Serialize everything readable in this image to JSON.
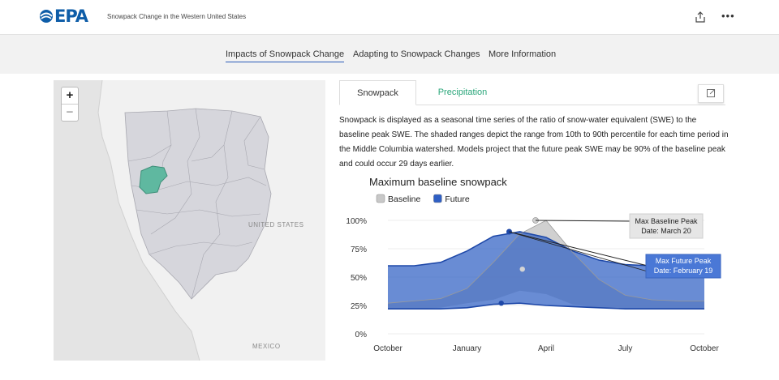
{
  "header": {
    "logo_text": "EPA",
    "app_title": "Snowpack Change in the Western United States"
  },
  "nav": {
    "items": [
      {
        "label": "Impacts of Snowpack Change",
        "active": true
      },
      {
        "label": "Adapting to Snowpack Changes",
        "active": false
      },
      {
        "label": "More Information",
        "active": false
      }
    ]
  },
  "map": {
    "zoom_in": "+",
    "zoom_out": "−",
    "labels": {
      "united_states": "UNITED STATES",
      "mexico": "MEXICO"
    },
    "highlight_color": "#5fb8a0",
    "region_color": "#d6d6dc"
  },
  "panel": {
    "tabs": [
      {
        "label": "Snowpack",
        "active": true
      },
      {
        "label": "Precipitation",
        "active": false
      }
    ],
    "description": "Snowpack is displayed as a seasonal time series of the ratio of snow-water equivalent (SWE) to the baseline peak SWE. The shaded ranges depict the range from 10th to 90th percentile for each time period in the Middle Columbia watershed. Models project that the future peak SWE may be 90% of the baseline peak and could occur 29 days earlier."
  },
  "chart_data": {
    "type": "area",
    "title": "Maximum baseline snowpack",
    "x_tick_labels": [
      "October",
      "January",
      "April",
      "July",
      "October"
    ],
    "y_tick_labels": [
      "0%",
      "25%",
      "50%",
      "75%",
      "100%"
    ],
    "ylim": [
      0,
      110
    ],
    "months_x": [
      0,
      1,
      2,
      3,
      4,
      5,
      6,
      7,
      8,
      9,
      10,
      11,
      12
    ],
    "legend": [
      {
        "label": "Baseline",
        "color": "#c8c8c8"
      },
      {
        "label": "Future",
        "color": "#2f5fc4"
      }
    ],
    "series": [
      {
        "name": "Baseline",
        "color": "#c8c8c8",
        "upper": [
          27,
          29,
          31,
          40,
          63,
          88,
          100,
          72,
          48,
          34,
          30,
          29,
          29
        ],
        "lower": [
          22,
          22,
          23,
          27,
          30,
          38,
          35,
          26,
          23,
          22,
          22,
          22,
          22
        ],
        "median": [
          null,
          null,
          null,
          null,
          null,
          null,
          57,
          null,
          null,
          null,
          null,
          null,
          null
        ]
      },
      {
        "name": "Future",
        "color": "#2f5fc4",
        "upper": [
          60,
          60,
          63,
          73,
          86,
          90,
          85,
          73,
          65,
          61,
          60,
          60,
          60
        ],
        "lower": [
          22,
          22,
          22,
          23,
          26,
          27,
          25,
          24,
          23,
          22,
          22,
          22,
          22
        ]
      }
    ],
    "annotations": [
      {
        "title": "Max Baseline Peak",
        "subtitle": "Date: March 20",
        "x": 5.6,
        "y": 100,
        "style": "baseline"
      },
      {
        "title": "Max Future Peak",
        "subtitle": "Date: February 19",
        "x": 4.6,
        "y": 90,
        "style": "future"
      }
    ],
    "future_low_marker": {
      "x": 4.3,
      "y": 27
    },
    "baseline_mid_marker": {
      "x": 5.1,
      "y": 57
    }
  }
}
